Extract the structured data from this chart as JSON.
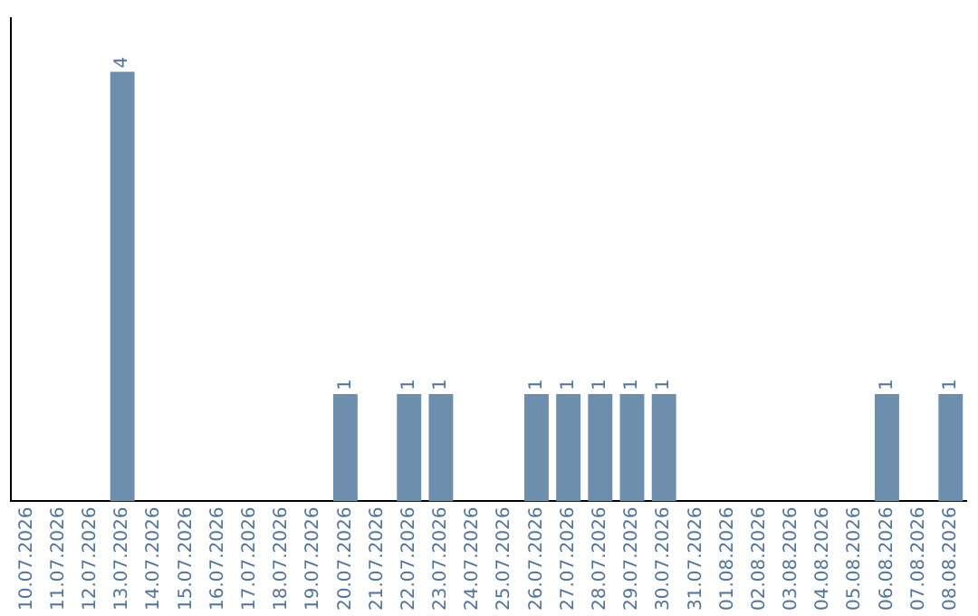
{
  "chart_data": {
    "type": "bar",
    "categories": [
      "10.07.2026",
      "11.07.2026",
      "12.07.2026",
      "13.07.2026",
      "14.07.2026",
      "15.07.2026",
      "16.07.2026",
      "17.07.2026",
      "18.07.2026",
      "19.07.2026",
      "20.07.2026",
      "21.07.2026",
      "22.07.2026",
      "23.07.2026",
      "24.07.2026",
      "25.07.2026",
      "26.07.2026",
      "27.07.2026",
      "28.07.2026",
      "29.07.2026",
      "30.07.2026",
      "31.07.2026",
      "01.08.2026",
      "02.08.2026",
      "03.08.2026",
      "04.08.2026",
      "05.08.2026",
      "06.08.2026",
      "07.08.2026",
      "08.08.2026"
    ],
    "values": [
      0,
      0,
      0,
      4,
      0,
      0,
      0,
      0,
      0,
      0,
      1,
      0,
      1,
      1,
      0,
      0,
      1,
      1,
      1,
      1,
      1,
      0,
      0,
      0,
      0,
      0,
      0,
      1,
      0,
      1
    ],
    "value_labels": [
      null,
      null,
      null,
      "4",
      null,
      null,
      null,
      null,
      null,
      null,
      "1",
      null,
      "1",
      "1",
      null,
      null,
      "1",
      "1",
      "1",
      "1",
      "1",
      null,
      null,
      null,
      null,
      null,
      null,
      "1",
      null,
      "1"
    ],
    "color": "#6d8eac",
    "grid": false,
    "legend": false,
    "tick_labels": "x"
  }
}
